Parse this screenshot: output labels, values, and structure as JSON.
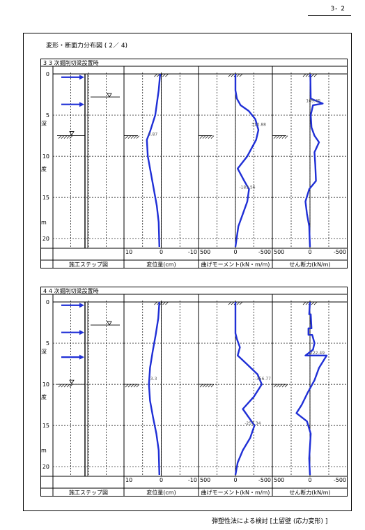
{
  "page_number": "3- 2",
  "heading": "変形・断面力分布図 ( 2／ 4)",
  "footer": "弾塑性法による検討 [土留壁 (応力変形) ]",
  "colors": {
    "curve": "#1f2fd6",
    "line": "#000000"
  },
  "panels": [
    {
      "title": "3 次掘削切梁設置時",
      "step_label": "3",
      "depth_ticks": [
        "0",
        "5",
        "10",
        "15",
        "20"
      ],
      "depth_word": [
        "深",
        "度",
        "m"
      ],
      "column_labels": [
        "施工ステップ図",
        "変位量(cm)",
        "曲げモーメント(kN・m/m)",
        "せん断力(kN/m)"
      ],
      "disp_axis": [
        "10",
        "0",
        "-10"
      ],
      "moment_axis": [
        "500",
        "0",
        "-500"
      ],
      "shear_axis": [
        "500",
        "0",
        "-500"
      ],
      "disp_annotation": "3.87",
      "moment_annotations": [
        "310.88",
        "-183.56"
      ],
      "shear_annotation": "169.45",
      "chart_data": {
        "type": "line",
        "y_axis": "depth (m)",
        "ylim": [
          0,
          21
        ],
        "struts_depth": [
          0.4,
          3.7
        ],
        "water_level_depth": 2.8,
        "excavation_depth": 7.5,
        "displacement": {
          "xlim": [
            10,
            -10
          ],
          "points": [
            [
              0.3,
              0
            ],
            [
              0.7,
              2
            ],
            [
              1.6,
              5
            ],
            [
              3.0,
              7
            ],
            [
              3.87,
              8
            ],
            [
              3.6,
              10
            ],
            [
              2.8,
              12
            ],
            [
              2.0,
              14
            ],
            [
              1.2,
              16
            ],
            [
              0.7,
              18
            ],
            [
              0.5,
              21
            ]
          ]
        },
        "moment": {
          "xlim": [
            500,
            -500
          ],
          "points": [
            [
              0,
              0
            ],
            [
              0,
              2
            ],
            [
              -20,
              3
            ],
            [
              -70,
              3.8
            ],
            [
              -180,
              4.5
            ],
            [
              -270,
              5.5
            ],
            [
              -310.88,
              6.8
            ],
            [
              -280,
              8
            ],
            [
              -160,
              10
            ],
            [
              -30,
              11.5
            ],
            [
              -120,
              13
            ],
            [
              -183.56,
              14
            ],
            [
              -160,
              15.5
            ],
            [
              -100,
              17
            ],
            [
              -40,
              18.5
            ],
            [
              0,
              21
            ]
          ]
        },
        "shear": {
          "xlim": [
            500,
            -500
          ],
          "points": [
            [
              -5,
              0
            ],
            [
              -10,
              3
            ],
            [
              -169.45,
              3.6
            ],
            [
              -40,
              3.8
            ],
            [
              -10,
              5
            ],
            [
              -20,
              6.5
            ],
            [
              -60,
              7.5
            ],
            [
              -120,
              8.3
            ],
            [
              -60,
              9.5
            ],
            [
              -70,
              11
            ],
            [
              -80,
              13
            ],
            [
              10,
              14
            ],
            [
              60,
              15.5
            ],
            [
              40,
              17
            ],
            [
              10,
              18.5
            ],
            [
              0,
              21
            ]
          ]
        }
      }
    },
    {
      "title": "4 次掘削切梁設置時",
      "step_label": "4",
      "depth_ticks": [
        "0",
        "5",
        "10",
        "15",
        "20"
      ],
      "depth_word": [
        "深",
        "度",
        "m"
      ],
      "column_labels": [
        "施工ステップ図",
        "変位量(cm)",
        "曲げモーメント(kN・m/m)",
        "せん断力(kN/m)"
      ],
      "disp_axis": [
        "10",
        "0",
        "-10"
      ],
      "moment_axis": [
        "500",
        "0",
        "-500"
      ],
      "shear_axis": [
        "500",
        "0",
        "-500"
      ],
      "disp_annotation": "3.3",
      "moment_annotations": [
        "-356.77",
        "-257.34"
      ],
      "shear_annotation": "222.49",
      "chart_data": {
        "type": "line",
        "y_axis": "depth (m)",
        "ylim": [
          0,
          21
        ],
        "struts_depth": [
          0.4,
          3.7,
          6.7
        ],
        "water_level_depth": 2.8,
        "excavation_depth": 10,
        "displacement": {
          "xlim": [
            10,
            -10
          ],
          "points": [
            [
              0.5,
              0
            ],
            [
              0.8,
              2
            ],
            [
              1.5,
              4
            ],
            [
              2.3,
              6
            ],
            [
              3.0,
              8
            ],
            [
              3.3,
              10
            ],
            [
              3.0,
              12
            ],
            [
              2.2,
              14
            ],
            [
              1.3,
              16
            ],
            [
              0.7,
              18
            ],
            [
              0.5,
              21
            ]
          ]
        },
        "moment": {
          "xlim": [
            500,
            -500
          ],
          "points": [
            [
              0,
              0
            ],
            [
              0,
              2
            ],
            [
              0,
              3.8
            ],
            [
              -20,
              4.5
            ],
            [
              -60,
              5.5
            ],
            [
              -30,
              6.5
            ],
            [
              -150,
              7.5
            ],
            [
              -300,
              8.8
            ],
            [
              -356.77,
              10
            ],
            [
              -250,
              11.5
            ],
            [
              -100,
              13
            ],
            [
              -257.34,
              15
            ],
            [
              -200,
              16.5
            ],
            [
              -100,
              18
            ],
            [
              -30,
              19.5
            ],
            [
              0,
              21
            ]
          ]
        },
        "shear": {
          "xlim": [
            500,
            -500
          ],
          "points": [
            [
              0,
              0
            ],
            [
              10,
              1.5
            ],
            [
              -10,
              1.5
            ],
            [
              -20,
              3.2
            ],
            [
              20,
              3.2
            ],
            [
              20,
              4
            ],
            [
              -30,
              4
            ],
            [
              -60,
              5
            ],
            [
              -40,
              5.8
            ],
            [
              60,
              6.5
            ],
            [
              -222.49,
              6.5
            ],
            [
              -120,
              8
            ],
            [
              -60,
              9.5
            ],
            [
              30,
              11
            ],
            [
              110,
              12.5
            ],
            [
              180,
              13.5
            ],
            [
              40,
              14.5
            ],
            [
              -10,
              16
            ],
            [
              0,
              17.5
            ],
            [
              10,
              19
            ],
            [
              0,
              21
            ]
          ]
        }
      }
    }
  ]
}
